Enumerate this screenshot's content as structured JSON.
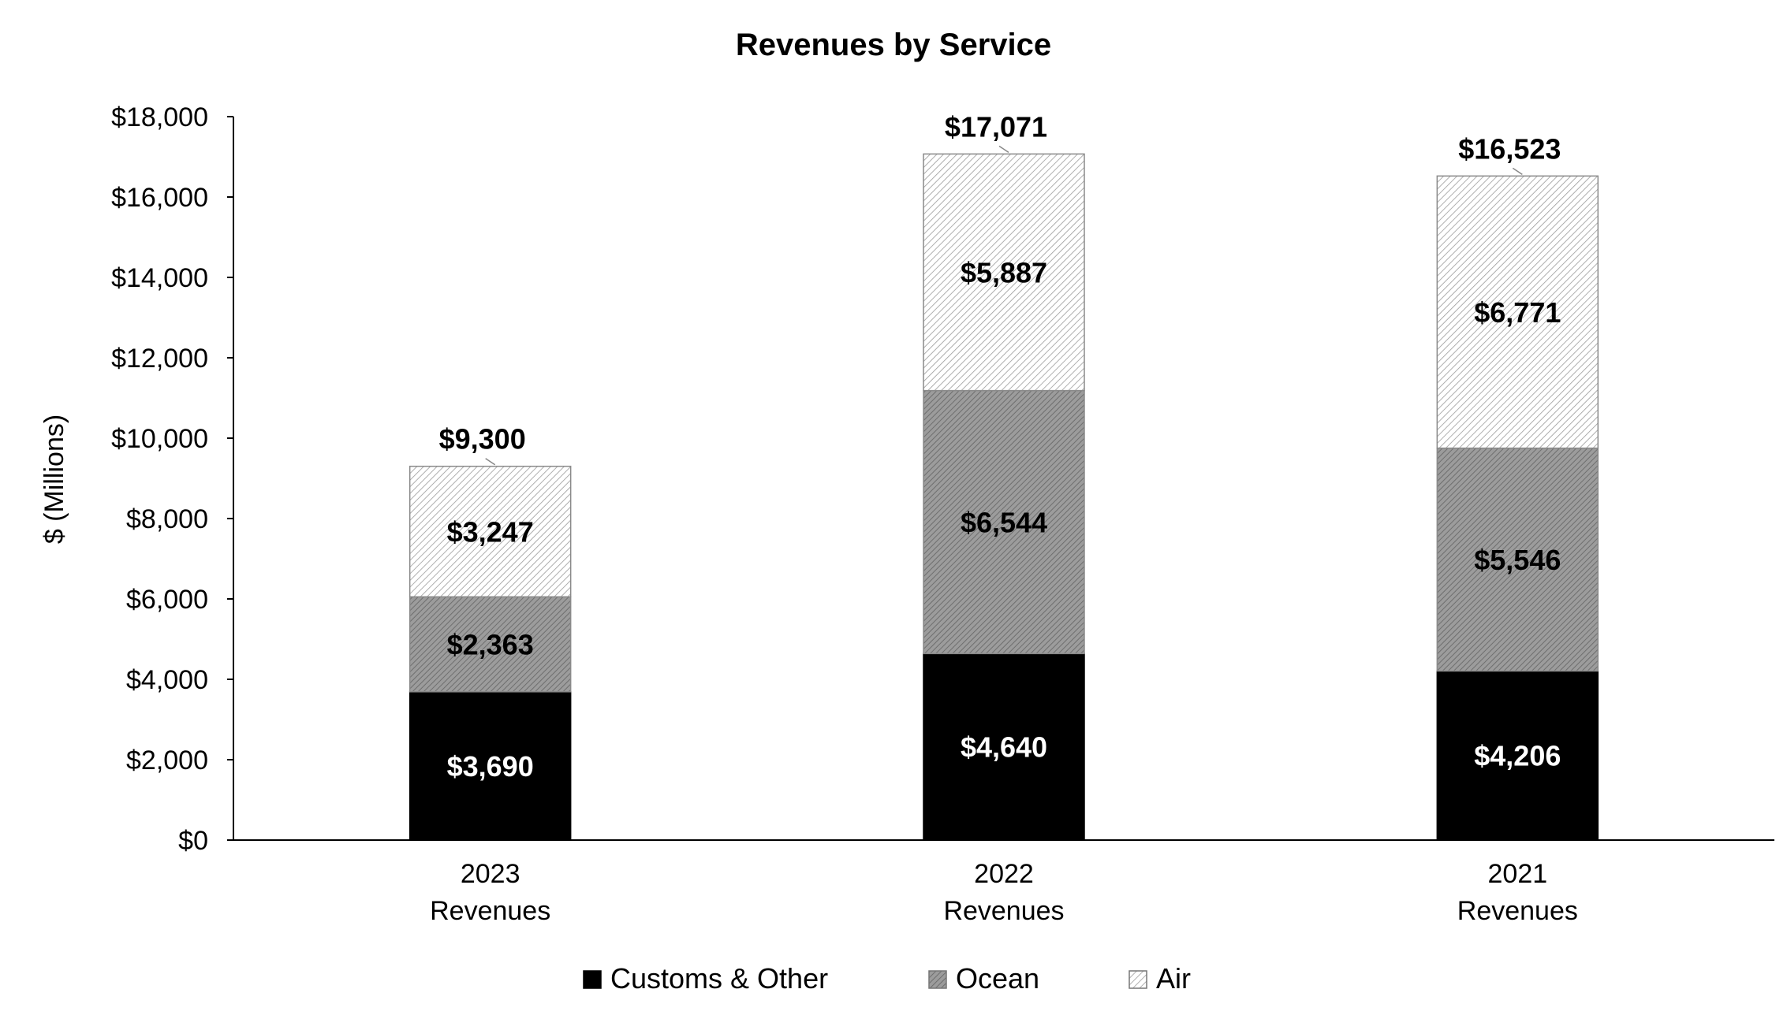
{
  "chart_data": {
    "type": "bar",
    "stacked": true,
    "title": "Revenues by Service",
    "ylabel": "$ (Millions)",
    "xlabel": "",
    "ylim": [
      0,
      18000
    ],
    "ytick_step": 2000,
    "ytick_labels": [
      "$0",
      "$2,000",
      "$4,000",
      "$6,000",
      "$8,000",
      "$10,000",
      "$12,000",
      "$14,000",
      "$16,000",
      "$18,000"
    ],
    "categories": [
      {
        "year": "2023",
        "sub": "Revenues"
      },
      {
        "year": "2022",
        "sub": "Revenues"
      },
      {
        "year": "2021",
        "sub": "Revenues"
      }
    ],
    "series": [
      {
        "name": "Customs & Other",
        "style": "solid",
        "color": "#000000",
        "label_color": "#ffffff",
        "values": [
          3690,
          4640,
          4206
        ],
        "labels": [
          "$3,690",
          "$4,640",
          "$4,206"
        ]
      },
      {
        "name": "Ocean",
        "style": "dense-hatch",
        "color": "#8c8c8c",
        "label_color": "#000000",
        "values": [
          2363,
          6544,
          5546
        ],
        "labels": [
          "$2,363",
          "$6,544",
          "$5,546"
        ]
      },
      {
        "name": "Air",
        "style": "light-hatch",
        "color": "#ffffff",
        "label_color": "#000000",
        "values": [
          3247,
          5887,
          6771
        ],
        "labels": [
          "$3,247",
          "$5,887",
          "$6,771"
        ]
      }
    ],
    "totals": [
      9300,
      17071,
      16523
    ],
    "total_labels": [
      "$9,300",
      "$17,071",
      "$16,523"
    ],
    "legend_position": "bottom"
  }
}
